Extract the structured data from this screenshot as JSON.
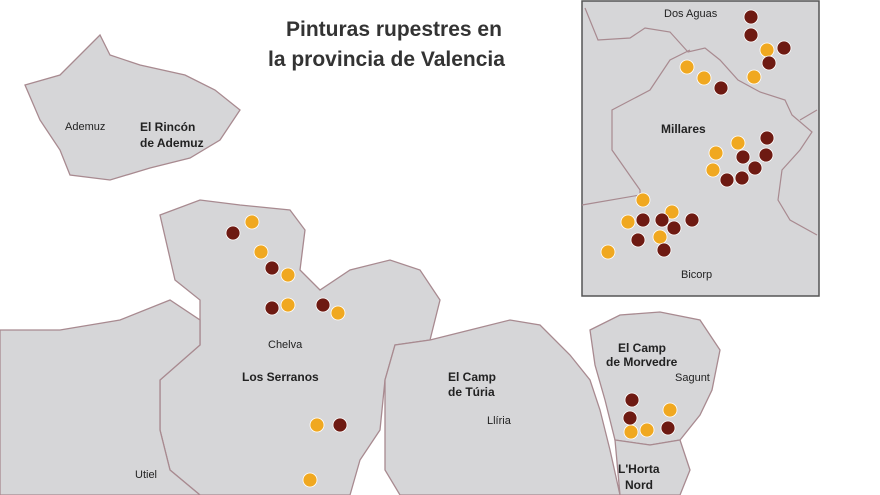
{
  "title_line1": "Pinturas rupestres en",
  "title_line2": "la provincia de Valencia",
  "colors": {
    "region_fill": "#d6d6d8",
    "border": "#a88a90",
    "dark_marker": "#6e1a12",
    "light_marker": "#f0a820"
  },
  "regions": {
    "rincon_line1": "El Rincón",
    "rincon_line2": "de Ademuz",
    "serranos": "Los Serranos",
    "camp_turia_line1": "El Camp",
    "camp_turia_line2": "de Túria",
    "camp_morvedre_line1": "El Camp",
    "camp_morvedre_line2": "de Morvedre",
    "horta_nord_line1": "L'Horta",
    "horta_nord_line2": "Nord"
  },
  "towns": {
    "ademuz": "Ademuz",
    "chelva": "Chelva",
    "lliria": "Llíria",
    "sagunt": "Sagunt",
    "utiel": "Utiel"
  },
  "inset": {
    "dos_aguas": "Dos Aguas",
    "millares": "Millares",
    "bicorp": "Bicorp"
  },
  "icons": {
    "marker": "rock-painting-marker"
  }
}
